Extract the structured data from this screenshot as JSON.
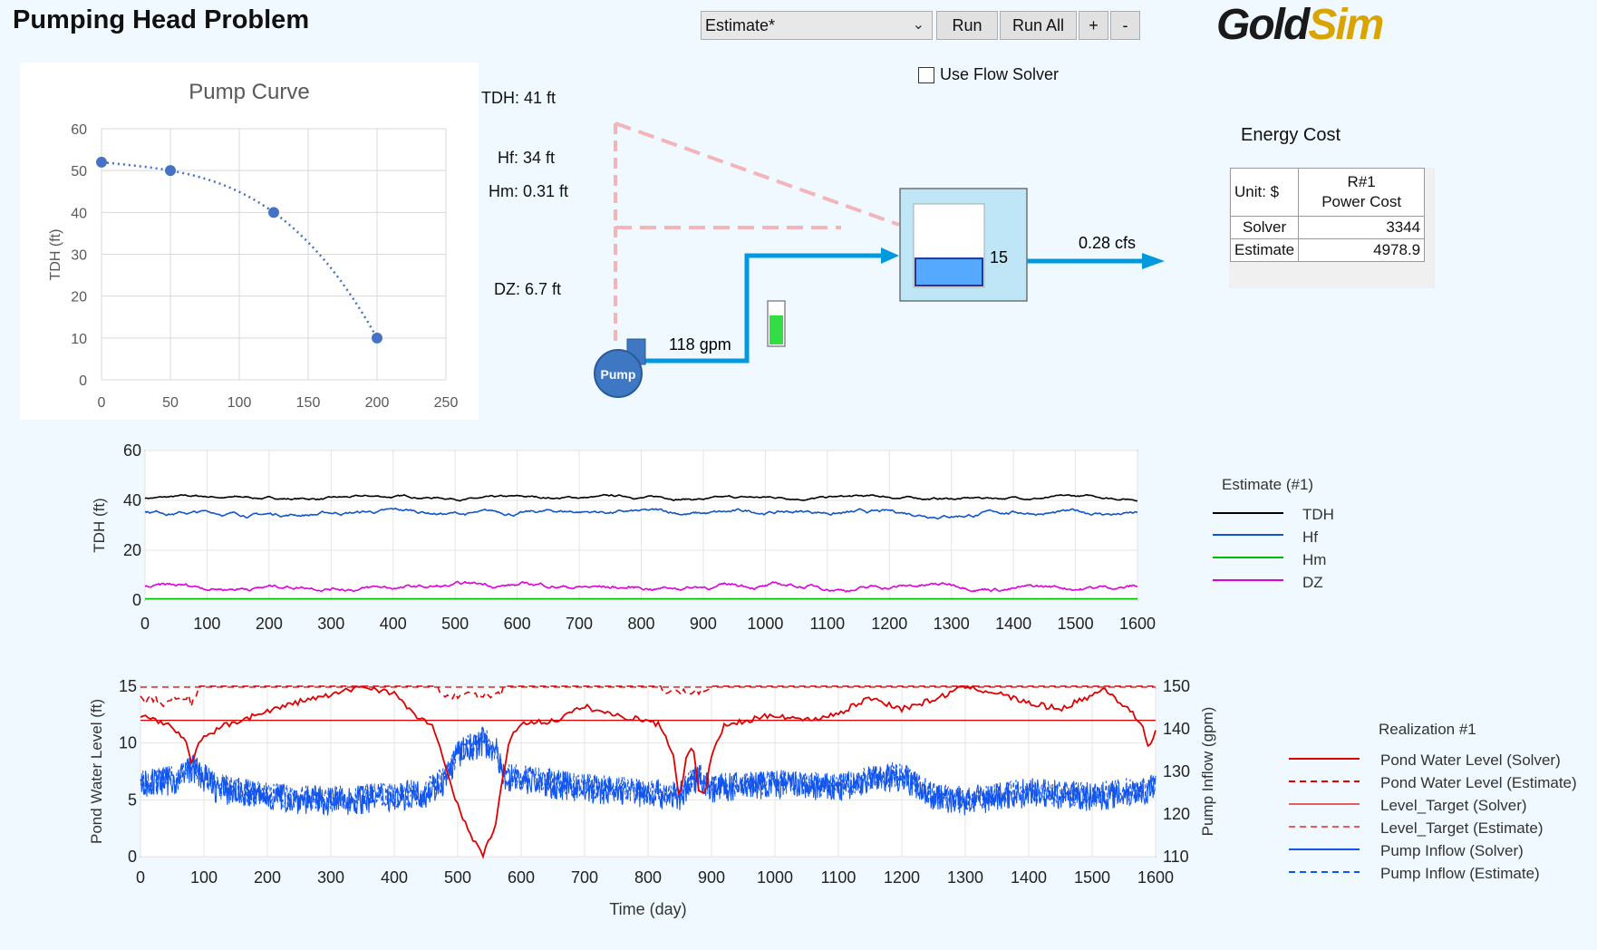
{
  "title": "Pumping Head Problem",
  "logo": {
    "part1": "Gold",
    "part2": "Sim"
  },
  "toolbar": {
    "scenario": "Estimate*",
    "run": "Run",
    "run_all": "Run All",
    "plus": "+",
    "minus": "-"
  },
  "flow_solver": {
    "label": "Use Flow Solver",
    "checked": false
  },
  "results": {
    "tdh": "TDH:  41 ft",
    "hf": "Hf:  34 ft",
    "hm": "Hm:  0.31 ft",
    "dz": "DZ:  6.7 ft"
  },
  "schematic": {
    "pump_label": "Pump",
    "pump_flow": "118 gpm",
    "pond_level": "15",
    "outflow": "0.28 cfs",
    "pond_fill_fraction": 0.34,
    "gauge_fill_fraction": 0.7
  },
  "energy_cost": {
    "title": "Energy Cost",
    "unit_label": "Unit: $",
    "column_header_1": "R#1",
    "column_header_2": "Power Cost",
    "rows": [
      {
        "label": "Solver",
        "value": "3344"
      },
      {
        "label": "Estimate",
        "value": "4978.9"
      }
    ]
  },
  "colors": {
    "tdh": "#000000",
    "hf": "#1155cc",
    "hm": "#00bb00",
    "dz": "#dd00dd",
    "pond_level": "#e00000",
    "pump_inflow": "#1155ee",
    "pipe": "#0099dd",
    "pond_fill": "#55aaff",
    "pond_box": "#bfe6f6",
    "pink_dash": "#f4b5b9"
  },
  "chart_data": [
    {
      "type": "scatter",
      "title": "Pump Curve",
      "ylabel": "TDH (ft)",
      "xlabel": "",
      "xlim": [
        0,
        250
      ],
      "ylim": [
        0,
        60
      ],
      "xticks": [
        0,
        50,
        100,
        150,
        200,
        250
      ],
      "yticks": [
        0,
        10,
        20,
        30,
        40,
        50,
        60
      ],
      "points": [
        [
          0,
          52
        ],
        [
          50,
          50
        ],
        [
          125,
          40
        ],
        [
          200,
          10
        ]
      ]
    },
    {
      "type": "line",
      "title": "",
      "ylabel": "TDH (ft)",
      "xlim": [
        0,
        1600
      ],
      "ylim": [
        0,
        60
      ],
      "xticks": [
        0,
        100,
        200,
        300,
        400,
        500,
        600,
        700,
        800,
        900,
        1000,
        1100,
        1200,
        1300,
        1400,
        1500,
        1600
      ],
      "yticks": [
        0,
        20,
        40,
        60
      ],
      "legend_title": "Estimate (#1)",
      "series": [
        {
          "name": "TDH",
          "base": 41,
          "noise": 0.5
        },
        {
          "name": "Hf",
          "base": 35,
          "noise": 0.8
        },
        {
          "name": "Hm",
          "base": 0.5,
          "noise": 0
        },
        {
          "name": "DZ",
          "base": 5.5,
          "noise": 0.9
        }
      ]
    },
    {
      "type": "line",
      "title": "",
      "xlabel": "Time (day)",
      "ylabel": "Pond Water Level (ft)",
      "y2label": "Pump Inflow (gpm)",
      "xlim": [
        0,
        1600
      ],
      "ylim": [
        0,
        15
      ],
      "y2lim": [
        110,
        150
      ],
      "xticks": [
        0,
        100,
        200,
        300,
        400,
        500,
        600,
        700,
        800,
        900,
        1000,
        1100,
        1200,
        1300,
        1400,
        1500,
        1600
      ],
      "yticks": [
        0,
        5,
        10,
        15
      ],
      "y2ticks": [
        110,
        120,
        130,
        140,
        150
      ],
      "legend_title": "Realization #1",
      "series": [
        {
          "name": "Pond Water Level (Solver)",
          "axis": "left",
          "style": "solid"
        },
        {
          "name": "Pond Water Level (Estimate)",
          "axis": "left",
          "style": "dashed"
        },
        {
          "name": "Level_Target (Solver)",
          "axis": "left",
          "style": "solid",
          "value": 12
        },
        {
          "name": "Level_Target (Estimate)",
          "axis": "left",
          "style": "dashed",
          "value": 15
        },
        {
          "name": "Pump Inflow (Solver)",
          "axis": "right",
          "style": "solid"
        },
        {
          "name": "Pump Inflow (Estimate)",
          "axis": "right",
          "style": "dashed"
        }
      ],
      "pond_level_solver_samples": [
        [
          0,
          12.3
        ],
        [
          40,
          11.8
        ],
        [
          70,
          10.5
        ],
        [
          80,
          8.3
        ],
        [
          95,
          10.2
        ],
        [
          130,
          11.5
        ],
        [
          200,
          12.8
        ],
        [
          260,
          13.8
        ],
        [
          300,
          14.2
        ],
        [
          350,
          15
        ],
        [
          400,
          14.4
        ],
        [
          430,
          12.5
        ],
        [
          460,
          11.6
        ],
        [
          480,
          8
        ],
        [
          500,
          4.5
        ],
        [
          520,
          2
        ],
        [
          540,
          0
        ],
        [
          560,
          3
        ],
        [
          580,
          10
        ],
        [
          600,
          11.8
        ],
        [
          650,
          11.9
        ],
        [
          700,
          13.2
        ],
        [
          750,
          12.4
        ],
        [
          800,
          12
        ],
        [
          820,
          11.5
        ],
        [
          840,
          9
        ],
        [
          850,
          5
        ],
        [
          860,
          8.5
        ],
        [
          870,
          10
        ],
        [
          880,
          6
        ],
        [
          890,
          5.5
        ],
        [
          900,
          9
        ],
        [
          920,
          11.5
        ],
        [
          960,
          12
        ],
        [
          1000,
          12.5
        ],
        [
          1050,
          12
        ],
        [
          1100,
          12.6
        ],
        [
          1150,
          14
        ],
        [
          1200,
          13
        ],
        [
          1250,
          13.8
        ],
        [
          1300,
          15
        ],
        [
          1350,
          14.4
        ],
        [
          1400,
          13.5
        ],
        [
          1450,
          13
        ],
        [
          1500,
          14.2
        ],
        [
          1520,
          14.8
        ],
        [
          1560,
          12.8
        ],
        [
          1580,
          11.5
        ],
        [
          1590,
          9.5
        ],
        [
          1600,
          11
        ]
      ],
      "pump_inflow_solver_samples": [
        [
          0,
          127
        ],
        [
          60,
          128
        ],
        [
          80,
          131
        ],
        [
          120,
          126
        ],
        [
          200,
          124
        ],
        [
          300,
          123
        ],
        [
          400,
          124
        ],
        [
          450,
          125
        ],
        [
          480,
          128
        ],
        [
          500,
          134
        ],
        [
          540,
          137
        ],
        [
          560,
          135
        ],
        [
          570,
          129
        ],
        [
          600,
          128
        ],
        [
          700,
          126
        ],
        [
          800,
          125
        ],
        [
          850,
          124
        ],
        [
          880,
          129
        ],
        [
          900,
          126
        ],
        [
          1000,
          127
        ],
        [
          1100,
          126
        ],
        [
          1150,
          128
        ],
        [
          1200,
          129
        ],
        [
          1250,
          124
        ],
        [
          1300,
          123
        ],
        [
          1400,
          125
        ],
        [
          1500,
          124
        ],
        [
          1600,
          126
        ]
      ]
    }
  ]
}
